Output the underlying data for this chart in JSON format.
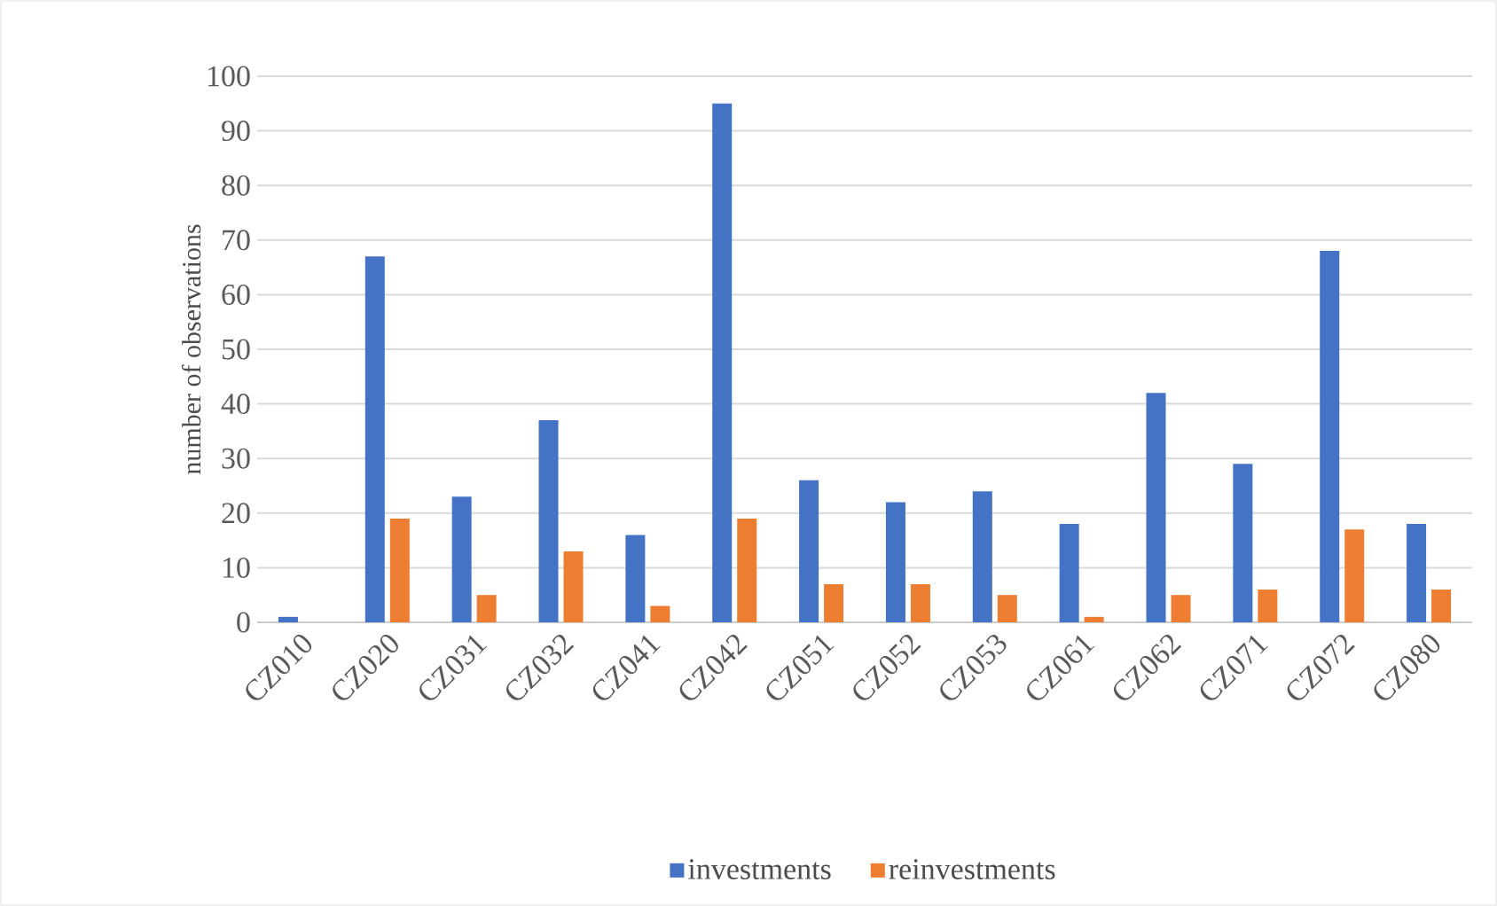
{
  "chart_data": {
    "type": "bar",
    "ylabel": "number  of observations",
    "categories": [
      "CZ010",
      "CZ020",
      "CZ031",
      "CZ032",
      "CZ041",
      "CZ042",
      "CZ051",
      "CZ052",
      "CZ053",
      "CZ061",
      "CZ062",
      "CZ071",
      "CZ072",
      "CZ080"
    ],
    "series": [
      {
        "name": "investments",
        "color": "#4472c4",
        "values": [
          1,
          67,
          23,
          37,
          16,
          95,
          26,
          22,
          24,
          18,
          42,
          29,
          68,
          18
        ]
      },
      {
        "name": "reinvestments",
        "color": "#ed7d31",
        "values": [
          0,
          19,
          5,
          13,
          3,
          19,
          7,
          7,
          5,
          1,
          5,
          6,
          17,
          6
        ]
      }
    ],
    "ylim": [
      0,
      100
    ],
    "yticks": [
      0,
      10,
      20,
      30,
      40,
      50,
      60,
      70,
      80,
      90,
      100
    ],
    "grid": "y",
    "legend": "bottom"
  }
}
